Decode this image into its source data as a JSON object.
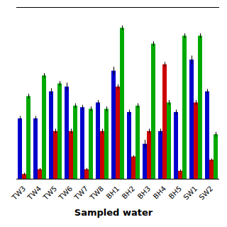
{
  "chart_data": {
    "type": "bar",
    "categories": [
      "TW3",
      "TW4",
      "TW5",
      "TW6",
      "TW7",
      "TW8",
      "BH1",
      "BH2",
      "BH3",
      "BH4",
      "BH5",
      "SW1",
      "SW2"
    ],
    "series": [
      {
        "color": "#0000cc",
        "values": [
          0.38,
          0.38,
          0.55,
          0.58,
          0.45,
          0.48,
          0.68,
          0.42,
          0.22,
          0.3,
          0.42,
          0.75,
          0.55
        ],
        "errors": [
          0.015,
          0.015,
          0.02,
          0.025,
          0.015,
          0.015,
          0.025,
          0.015,
          0.025,
          0.015,
          0.015,
          0.025,
          0.015
        ]
      },
      {
        "color": "#cc0000",
        "values": [
          0.03,
          0.06,
          0.3,
          0.3,
          0.06,
          0.3,
          0.58,
          0.14,
          0.3,
          0.72,
          0.05,
          0.48,
          0.12
        ],
        "errors": [
          0.008,
          0.008,
          0.015,
          0.015,
          0.008,
          0.015,
          0.015,
          0.008,
          0.015,
          0.015,
          0.008,
          0.015,
          0.008
        ]
      },
      {
        "color": "#00aa00",
        "values": [
          0.52,
          0.65,
          0.6,
          0.46,
          0.44,
          0.44,
          0.95,
          0.46,
          0.85,
          0.48,
          0.9,
          0.9,
          0.28
        ],
        "errors": [
          0.015,
          0.015,
          0.015,
          0.015,
          0.015,
          0.015,
          0.015,
          0.015,
          0.015,
          0.015,
          0.015,
          0.015,
          0.015
        ]
      }
    ],
    "xlabel": "Sampled water",
    "ylim": [
      0,
      1.08
    ],
    "yticks": [],
    "tick_labels": "x",
    "grid": false
  }
}
